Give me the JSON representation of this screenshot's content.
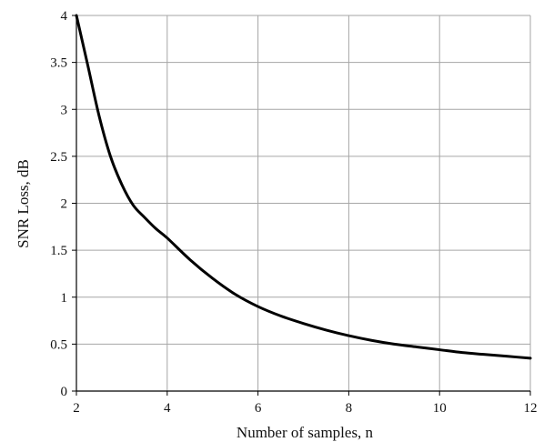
{
  "chart_data": {
    "type": "line",
    "title": "",
    "xlabel": "Number of samples, n",
    "ylabel": "SNR Loss, dB",
    "xlim": [
      2,
      12
    ],
    "ylim": [
      0,
      4
    ],
    "grid": true,
    "x_ticks": [
      2,
      4,
      6,
      8,
      10,
      12
    ],
    "y_ticks": [
      0,
      0.5,
      1,
      1.5,
      2,
      2.5,
      3,
      3.5,
      4
    ],
    "y_tick_labels": [
      "0",
      "0.5",
      "1",
      "1.5",
      "2",
      "2.5",
      "3",
      "3.5",
      "4"
    ],
    "colors": {
      "line": "#000000",
      "grid": "#a6a6a6",
      "axis": "#000000"
    },
    "series": [
      {
        "x": [
          2,
          2.25,
          2.5,
          2.75,
          3,
          3.25,
          3.5,
          3.75,
          4,
          4.5,
          5,
          5.5,
          6,
          6.5,
          7,
          7.5,
          8,
          8.5,
          9,
          9.5,
          10,
          10.5,
          11,
          11.5,
          12
        ],
        "y": [
          4.0,
          3.47,
          2.93,
          2.5,
          2.2,
          1.98,
          1.85,
          1.73,
          1.63,
          1.4,
          1.2,
          1.03,
          0.9,
          0.8,
          0.72,
          0.65,
          0.59,
          0.54,
          0.5,
          0.47,
          0.44,
          0.41,
          0.39,
          0.37,
          0.35
        ]
      }
    ]
  }
}
